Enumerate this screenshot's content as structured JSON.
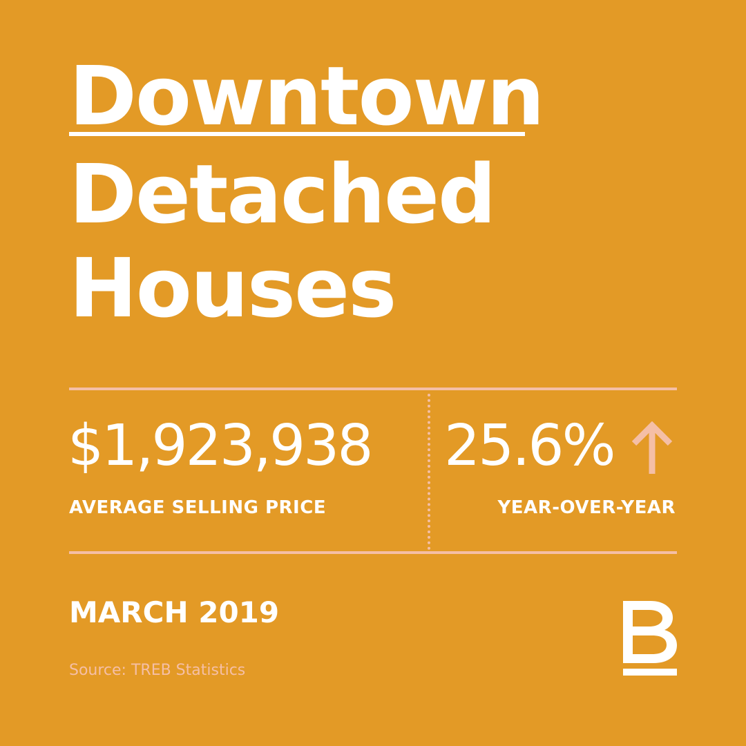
{
  "title": {
    "line1": "Downtown",
    "line2": "Detached",
    "line3": "Houses"
  },
  "stats": {
    "price_value": "$1,923,938",
    "price_label": "AVERAGE SELLING PRICE",
    "change_value": "25.6%",
    "change_direction_icon": "arrow-up-icon",
    "change_label": "YEAR-OVER-YEAR"
  },
  "footer": {
    "date": "MARCH 2019",
    "source": "Source: TREB Statistics",
    "logo_icon": "brand-b-logo-icon"
  },
  "colors": {
    "background": "#E39A26",
    "text": "#FFFFFF",
    "accent": "#F5BFA6"
  }
}
